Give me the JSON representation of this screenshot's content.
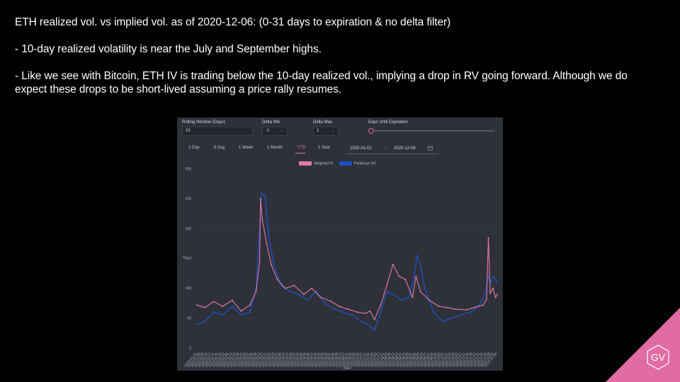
{
  "slide": {
    "title": "ETH realized vol. vs implied vol. as of 2020-12-06: (0-31 days to expiration & no delta filter)",
    "bullet_1": "- 10-day realized volatility is near the July and September highs.",
    "bullet_2_line_1": "- Like we see with Bitcoin, ETH IV is trading below the 10-day realized vol., implying a drop in RV going forward. Although we do",
    "bullet_2_line_2": "expect these drops to be short-lived assuming a price rally resumes."
  },
  "logo": {
    "text": "GV",
    "color": "#e06ca3"
  },
  "dashboard": {
    "rolling_window": {
      "label": "Rolling Window (Days)",
      "value": "10"
    },
    "delta_min": {
      "label": "Delta Min",
      "value": "-1"
    },
    "delta_max": {
      "label": "Delta Max",
      "value": "1"
    },
    "days_until_expiration": {
      "label": "Days Until Expiration"
    },
    "tabs": [
      "1 Day",
      "5 Day",
      "1 Week",
      "1 Month",
      "YTD",
      "1 Year"
    ],
    "active_tab": "YTD",
    "date_range": {
      "start": "2020-01-01",
      "separator": "~",
      "end": "2020-12-06"
    },
    "accent_color": "#e07aa5"
  },
  "chart_data": {
    "type": "line",
    "title": "",
    "xlabel": "Date",
    "ylabel": "%",
    "ylim": [
      0,
      300
    ],
    "yticks": [
      0,
      50,
      100,
      150,
      200,
      250,
      300
    ],
    "xlim": [
      "2020-01-01",
      "2020-12-06"
    ],
    "legend_position": "top-center",
    "series": [
      {
        "name": "Weighted IV",
        "color": "#e07aa5",
        "points": [
          [
            "2020-01-01",
            72
          ],
          [
            "2020-01-10",
            68
          ],
          [
            "2020-01-20",
            78
          ],
          [
            "2020-01-30",
            70
          ],
          [
            "2020-02-10",
            80
          ],
          [
            "2020-02-20",
            62
          ],
          [
            "2020-03-01",
            72
          ],
          [
            "2020-03-08",
            95
          ],
          [
            "2020-03-12",
            145
          ],
          [
            "2020-03-13",
            250
          ],
          [
            "2020-03-15",
            215
          ],
          [
            "2020-03-20",
            175
          ],
          [
            "2020-03-25",
            140
          ],
          [
            "2020-04-01",
            115
          ],
          [
            "2020-04-10",
            100
          ],
          [
            "2020-04-20",
            105
          ],
          [
            "2020-05-01",
            90
          ],
          [
            "2020-05-10",
            100
          ],
          [
            "2020-05-20",
            85
          ],
          [
            "2020-06-01",
            78
          ],
          [
            "2020-06-10",
            70
          ],
          [
            "2020-06-20",
            65
          ],
          [
            "2020-07-01",
            60
          ],
          [
            "2020-07-10",
            58
          ],
          [
            "2020-07-15",
            62
          ],
          [
            "2020-07-20",
            48
          ],
          [
            "2020-07-27",
            72
          ],
          [
            "2020-08-03",
            105
          ],
          [
            "2020-08-10",
            140
          ],
          [
            "2020-08-17",
            120
          ],
          [
            "2020-08-24",
            115
          ],
          [
            "2020-09-01",
            85
          ],
          [
            "2020-09-05",
            120
          ],
          [
            "2020-09-10",
            95
          ],
          [
            "2020-09-20",
            80
          ],
          [
            "2020-10-01",
            70
          ],
          [
            "2020-10-10",
            68
          ],
          [
            "2020-10-20",
            65
          ],
          [
            "2020-11-01",
            64
          ],
          [
            "2020-11-10",
            68
          ],
          [
            "2020-11-20",
            72
          ],
          [
            "2020-11-24",
            82
          ],
          [
            "2020-11-26",
            185
          ],
          [
            "2020-11-28",
            92
          ],
          [
            "2020-12-01",
            100
          ],
          [
            "2020-12-04",
            85
          ],
          [
            "2020-12-06",
            90
          ]
        ]
      },
      {
        "name": "Parkinson HV",
        "color": "#1e4fbf",
        "points": [
          [
            "2020-01-01",
            40
          ],
          [
            "2020-01-10",
            45
          ],
          [
            "2020-01-20",
            60
          ],
          [
            "2020-01-30",
            55
          ],
          [
            "2020-02-10",
            70
          ],
          [
            "2020-02-20",
            55
          ],
          [
            "2020-03-01",
            60
          ],
          [
            "2020-03-08",
            100
          ],
          [
            "2020-03-12",
            200
          ],
          [
            "2020-03-14",
            260
          ],
          [
            "2020-03-18",
            255
          ],
          [
            "2020-03-22",
            190
          ],
          [
            "2020-03-28",
            140
          ],
          [
            "2020-04-05",
            105
          ],
          [
            "2020-04-15",
            95
          ],
          [
            "2020-04-25",
            90
          ],
          [
            "2020-05-05",
            80
          ],
          [
            "2020-05-15",
            95
          ],
          [
            "2020-05-25",
            75
          ],
          [
            "2020-06-05",
            65
          ],
          [
            "2020-06-15",
            60
          ],
          [
            "2020-06-25",
            55
          ],
          [
            "2020-07-05",
            45
          ],
          [
            "2020-07-12",
            40
          ],
          [
            "2020-07-20",
            30
          ],
          [
            "2020-07-27",
            60
          ],
          [
            "2020-08-03",
            95
          ],
          [
            "2020-08-10",
            90
          ],
          [
            "2020-08-20",
            80
          ],
          [
            "2020-08-28",
            85
          ],
          [
            "2020-09-03",
            120
          ],
          [
            "2020-09-06",
            155
          ],
          [
            "2020-09-10",
            140
          ],
          [
            "2020-09-15",
            100
          ],
          [
            "2020-09-25",
            60
          ],
          [
            "2020-10-05",
            45
          ],
          [
            "2020-10-15",
            50
          ],
          [
            "2020-10-25",
            55
          ],
          [
            "2020-11-05",
            60
          ],
          [
            "2020-11-15",
            70
          ],
          [
            "2020-11-22",
            90
          ],
          [
            "2020-11-26",
            120
          ],
          [
            "2020-11-29",
            110
          ],
          [
            "2020-12-02",
            120
          ],
          [
            "2020-12-06",
            110
          ]
        ]
      }
    ]
  }
}
